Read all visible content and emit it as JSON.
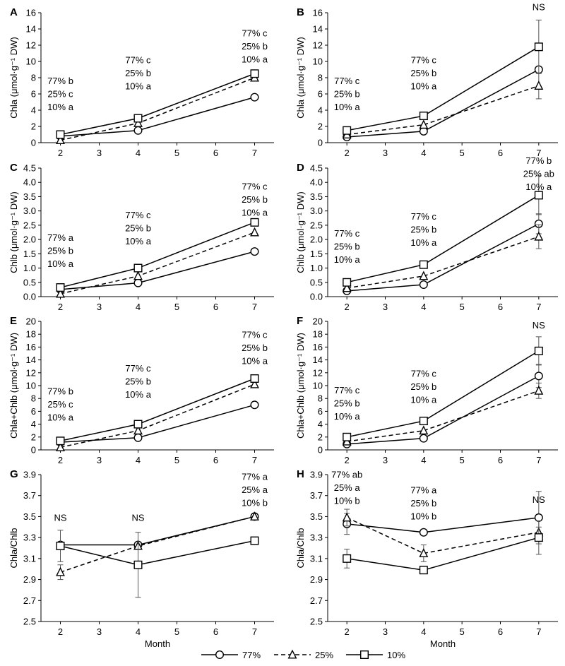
{
  "figure": {
    "xlabel": "Month",
    "legend": [
      {
        "name": "77%",
        "marker": "circle",
        "dash": false
      },
      {
        "name": "25%",
        "marker": "triangle",
        "dash": true
      },
      {
        "name": "10%",
        "marker": "square",
        "dash": false
      }
    ]
  },
  "chart_data": [
    {
      "panel": "A",
      "type": "line",
      "ylabel": "Chla (μmol·g⁻¹ DW)",
      "ylim": [
        0,
        16
      ],
      "yticks": [
        0,
        2,
        4,
        6,
        8,
        10,
        12,
        14,
        16
      ],
      "yprecision": 0,
      "xlim": [
        1.5,
        7.5
      ],
      "xticks": [
        2,
        3,
        4,
        5,
        6,
        7
      ],
      "showXlabel": false,
      "series": [
        {
          "name": "77%",
          "x": [
            2,
            4,
            7
          ],
          "y": [
            0.8,
            1.5,
            5.6
          ]
        },
        {
          "name": "25%",
          "x": [
            2,
            4,
            7
          ],
          "y": [
            0.3,
            2.4,
            8.0
          ]
        },
        {
          "name": "10%",
          "x": [
            2,
            4,
            7
          ],
          "y": [
            1.0,
            3.0,
            8.5
          ]
        }
      ],
      "annotations": [
        {
          "x": 2,
          "y": 7.2,
          "lines": [
            "77% b",
            "25% c",
            "10% a"
          ]
        },
        {
          "x": 4,
          "y": 9.8,
          "lines": [
            "77% c",
            "25% b",
            "10% a"
          ]
        },
        {
          "x": 7,
          "y": 13.1,
          "lines": [
            "77% c",
            "25% b",
            "10% a"
          ]
        }
      ]
    },
    {
      "panel": "B",
      "type": "line",
      "ylabel": "Chla (μmol·g⁻¹ DW)",
      "ylim": [
        0,
        16
      ],
      "yticks": [
        0,
        2,
        4,
        6,
        8,
        10,
        12,
        14,
        16
      ],
      "yprecision": 0,
      "xlim": [
        1.5,
        7.5
      ],
      "xticks": [
        2,
        3,
        4,
        5,
        6,
        7
      ],
      "showXlabel": false,
      "series": [
        {
          "name": "77%",
          "x": [
            2,
            4,
            7
          ],
          "y": [
            0.7,
            1.4,
            9.0
          ]
        },
        {
          "name": "25%",
          "x": [
            2,
            4,
            7
          ],
          "y": [
            1.0,
            2.2,
            7.0
          ],
          "err": [
            0,
            0,
            1.6
          ]
        },
        {
          "name": "10%",
          "x": [
            2,
            4,
            7
          ],
          "y": [
            1.5,
            3.3,
            11.8
          ],
          "err": [
            0,
            0,
            3.3
          ]
        }
      ],
      "annotations": [
        {
          "x": 2,
          "y": 7.2,
          "lines": [
            "77% c",
            "25% b",
            "10% a"
          ]
        },
        {
          "x": 4,
          "y": 9.8,
          "lines": [
            "77% c",
            "25% b",
            "10% a"
          ]
        },
        {
          "x": 7,
          "y": 16.3,
          "lines": [
            "NS"
          ]
        }
      ]
    },
    {
      "panel": "C",
      "type": "line",
      "ylabel": "Chlb (μmol·g⁻¹ DW)",
      "ylim": [
        0,
        4.5
      ],
      "yticks": [
        0,
        0.5,
        1.0,
        1.5,
        2.0,
        2.5,
        3.0,
        3.5,
        4.0,
        4.5
      ],
      "yprecision": 1,
      "xlim": [
        1.5,
        7.5
      ],
      "xticks": [
        2,
        3,
        4,
        5,
        6,
        7
      ],
      "showXlabel": false,
      "series": [
        {
          "name": "77%",
          "x": [
            2,
            4,
            7
          ],
          "y": [
            0.25,
            0.48,
            1.58
          ]
        },
        {
          "name": "25%",
          "x": [
            2,
            4,
            7
          ],
          "y": [
            0.1,
            0.72,
            2.25
          ]
        },
        {
          "name": "10%",
          "x": [
            2,
            4,
            7
          ],
          "y": [
            0.32,
            1.0,
            2.6
          ]
        }
      ],
      "annotations": [
        {
          "x": 2,
          "y": 1.95,
          "lines": [
            "77% a",
            "25% b",
            "10% a"
          ]
        },
        {
          "x": 4,
          "y": 2.75,
          "lines": [
            "77% c",
            "25% b",
            "10% a"
          ]
        },
        {
          "x": 7,
          "y": 3.75,
          "lines": [
            "77% c",
            "25% b",
            "10% a"
          ]
        }
      ]
    },
    {
      "panel": "D",
      "type": "line",
      "ylabel": "Chlb (μmol·g⁻¹ DW)",
      "ylim": [
        0,
        4.5
      ],
      "yticks": [
        0,
        0.5,
        1.0,
        1.5,
        2.0,
        2.5,
        3.0,
        3.5,
        4.0,
        4.5
      ],
      "yprecision": 1,
      "xlim": [
        1.5,
        7.5
      ],
      "xticks": [
        2,
        3,
        4,
        5,
        6,
        7
      ],
      "showXlabel": false,
      "series": [
        {
          "name": "77%",
          "x": [
            2,
            4,
            7
          ],
          "y": [
            0.2,
            0.42,
            2.55
          ],
          "err": [
            0,
            0,
            0.35
          ]
        },
        {
          "name": "25%",
          "x": [
            2,
            4,
            7
          ],
          "y": [
            0.3,
            0.72,
            2.1
          ],
          "err": [
            0,
            0,
            0.42
          ]
        },
        {
          "name": "10%",
          "x": [
            2,
            4,
            7
          ],
          "y": [
            0.5,
            1.12,
            3.55
          ],
          "err": [
            0,
            0,
            0.68
          ]
        }
      ],
      "annotations": [
        {
          "x": 2,
          "y": 2.1,
          "lines": [
            "77% c",
            "25% b",
            "10% a"
          ]
        },
        {
          "x": 4,
          "y": 2.7,
          "lines": [
            "77% c",
            "25% b",
            "10% a"
          ]
        },
        {
          "x": 7,
          "y": 4.65,
          "lines": [
            "77% b",
            "25% ab",
            "10% a"
          ]
        }
      ]
    },
    {
      "panel": "E",
      "type": "line",
      "ylabel": "Chla+Chlb (μmol·g⁻¹ DW)",
      "ylim": [
        0,
        20
      ],
      "yticks": [
        0,
        2,
        4,
        6,
        8,
        10,
        12,
        14,
        16,
        18,
        20
      ],
      "yprecision": 0,
      "xlim": [
        1.5,
        7.5
      ],
      "xticks": [
        2,
        3,
        4,
        5,
        6,
        7
      ],
      "showXlabel": false,
      "series": [
        {
          "name": "77%",
          "x": [
            2,
            4,
            7
          ],
          "y": [
            1.2,
            1.9,
            7.0
          ]
        },
        {
          "name": "25%",
          "x": [
            2,
            4,
            7
          ],
          "y": [
            0.4,
            3.0,
            10.2
          ]
        },
        {
          "name": "10%",
          "x": [
            2,
            4,
            7
          ],
          "y": [
            1.4,
            4.0,
            11.1
          ]
        }
      ],
      "annotations": [
        {
          "x": 2,
          "y": 8.6,
          "lines": [
            "77% b",
            "25% c",
            "10% a"
          ]
        },
        {
          "x": 4,
          "y": 12.2,
          "lines": [
            "77% c",
            "25% b",
            "10% a"
          ]
        },
        {
          "x": 7,
          "y": 17.4,
          "lines": [
            "77% c",
            "25% b",
            "10% a"
          ]
        }
      ]
    },
    {
      "panel": "F",
      "type": "line",
      "ylabel": "Chla+Chlb (μmol·g⁻¹ DW)",
      "ylim": [
        0,
        20
      ],
      "yticks": [
        0,
        2,
        4,
        6,
        8,
        10,
        12,
        14,
        16,
        18,
        20
      ],
      "yprecision": 0,
      "xlim": [
        1.5,
        7.5
      ],
      "xticks": [
        2,
        3,
        4,
        5,
        6,
        7
      ],
      "showXlabel": false,
      "series": [
        {
          "name": "77%",
          "x": [
            2,
            4,
            7
          ],
          "y": [
            0.9,
            1.8,
            11.5
          ],
          "err": [
            0,
            0,
            1.8
          ]
        },
        {
          "name": "25%",
          "x": [
            2,
            4,
            7
          ],
          "y": [
            1.3,
            3.0,
            9.2
          ],
          "err": [
            0,
            0,
            1.2
          ]
        },
        {
          "name": "10%",
          "x": [
            2,
            4,
            7
          ],
          "y": [
            2.0,
            4.5,
            15.4
          ],
          "err": [
            0,
            0,
            2.2
          ]
        }
      ],
      "annotations": [
        {
          "x": 2,
          "y": 8.8,
          "lines": [
            "77% c",
            "25% b",
            "10% a"
          ]
        },
        {
          "x": 4,
          "y": 11.4,
          "lines": [
            "77% c",
            "25% b",
            "10% a"
          ]
        },
        {
          "x": 7,
          "y": 18.9,
          "lines": [
            "NS"
          ]
        }
      ]
    },
    {
      "panel": "G",
      "type": "line",
      "ylabel": "Chla/Chlb",
      "ylim": [
        2.5,
        3.9
      ],
      "yticks": [
        2.5,
        2.7,
        2.9,
        3.1,
        3.3,
        3.5,
        3.7,
        3.9
      ],
      "yprecision": 1,
      "xlim": [
        1.5,
        7.5
      ],
      "xticks": [
        2,
        3,
        4,
        5,
        6,
        7
      ],
      "showXlabel": true,
      "series": [
        {
          "name": "77%",
          "x": [
            2,
            4,
            7
          ],
          "y": [
            3.23,
            3.23,
            3.5
          ]
        },
        {
          "name": "25%",
          "x": [
            2,
            4,
            7
          ],
          "y": [
            2.97,
            3.22,
            3.5
          ],
          "err": [
            0.07,
            0,
            0
          ]
        },
        {
          "name": "10%",
          "x": [
            2,
            4,
            7
          ],
          "y": [
            3.22,
            3.04,
            3.27
          ],
          "err": [
            0.15,
            0.31,
            0
          ]
        }
      ],
      "annotations": [
        {
          "x": 2,
          "y": 3.46,
          "lines": [
            "NS"
          ]
        },
        {
          "x": 4,
          "y": 3.46,
          "lines": [
            "NS"
          ]
        },
        {
          "x": 7,
          "y": 3.85,
          "lines": [
            "77% a",
            "25% a",
            "10% b"
          ]
        }
      ]
    },
    {
      "panel": "H",
      "type": "line",
      "ylabel": "Chla/Chlb",
      "ylim": [
        2.5,
        3.9
      ],
      "yticks": [
        2.5,
        2.7,
        2.9,
        3.1,
        3.3,
        3.5,
        3.7,
        3.9
      ],
      "yprecision": 1,
      "xlim": [
        1.5,
        7.5
      ],
      "xticks": [
        2,
        3,
        4,
        5,
        6,
        7
      ],
      "showXlabel": true,
      "series": [
        {
          "name": "77%",
          "x": [
            2,
            4,
            7
          ],
          "y": [
            3.43,
            3.35,
            3.49
          ],
          "err": [
            0.1,
            0,
            0.25
          ]
        },
        {
          "name": "25%",
          "x": [
            2,
            4,
            7
          ],
          "y": [
            3.49,
            3.15,
            3.35
          ],
          "err": [
            0.08,
            0.08,
            0.05
          ]
        },
        {
          "name": "10%",
          "x": [
            2,
            4,
            7
          ],
          "y": [
            3.1,
            2.99,
            3.3
          ],
          "err": [
            0.09,
            0,
            0.16
          ]
        }
      ],
      "annotations": [
        {
          "x": 2,
          "y": 3.87,
          "lines": [
            "77% ab",
            "25% a",
            "10% b"
          ]
        },
        {
          "x": 4,
          "y": 3.72,
          "lines": [
            "77% a",
            "25% b",
            "10% b"
          ]
        },
        {
          "x": 7,
          "y": 3.63,
          "lines": [
            "NS"
          ]
        }
      ]
    }
  ]
}
